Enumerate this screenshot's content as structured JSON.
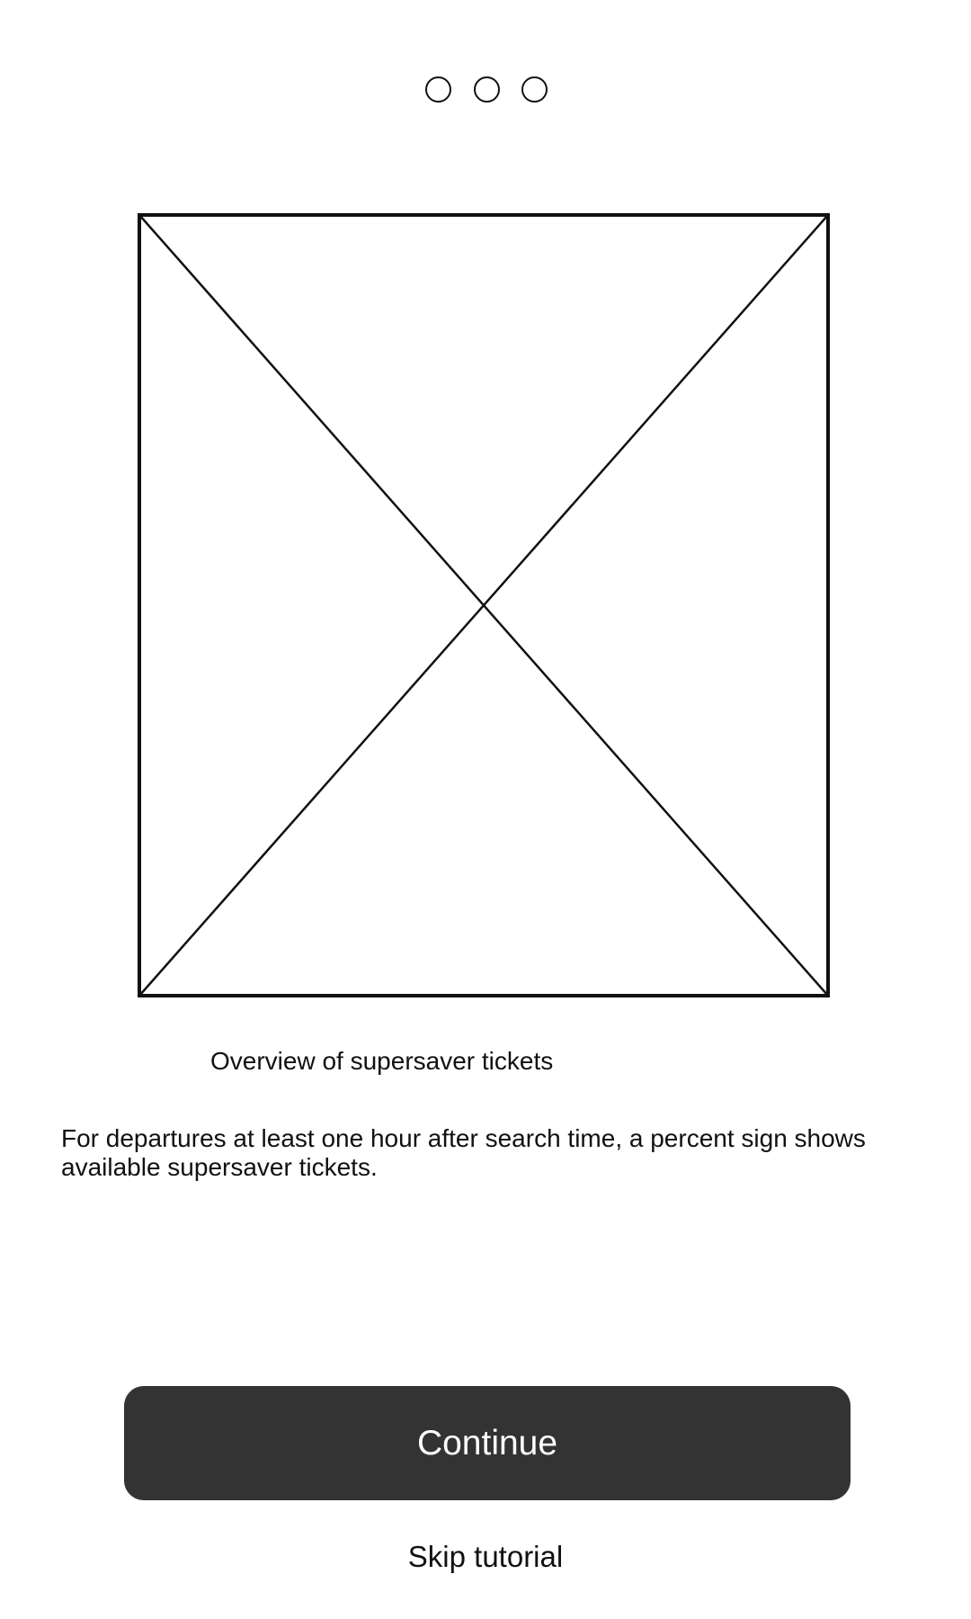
{
  "pager": {
    "total_pages": 3,
    "active_page": null
  },
  "tutorial": {
    "caption": "Overview of supersaver tickets",
    "description": "For departures at least one hour after search time, a percent sign shows available supersaver tickets."
  },
  "actions": {
    "continue_label": "Continue",
    "skip_label": "Skip tutorial"
  },
  "colors": {
    "background": "#ffffff",
    "primary_button": "#333333",
    "primary_button_text": "#ffffff",
    "text": "#111111"
  },
  "icons": {
    "image_placeholder": "image-placeholder-icon",
    "pager_dot": "circle-outline-icon"
  }
}
